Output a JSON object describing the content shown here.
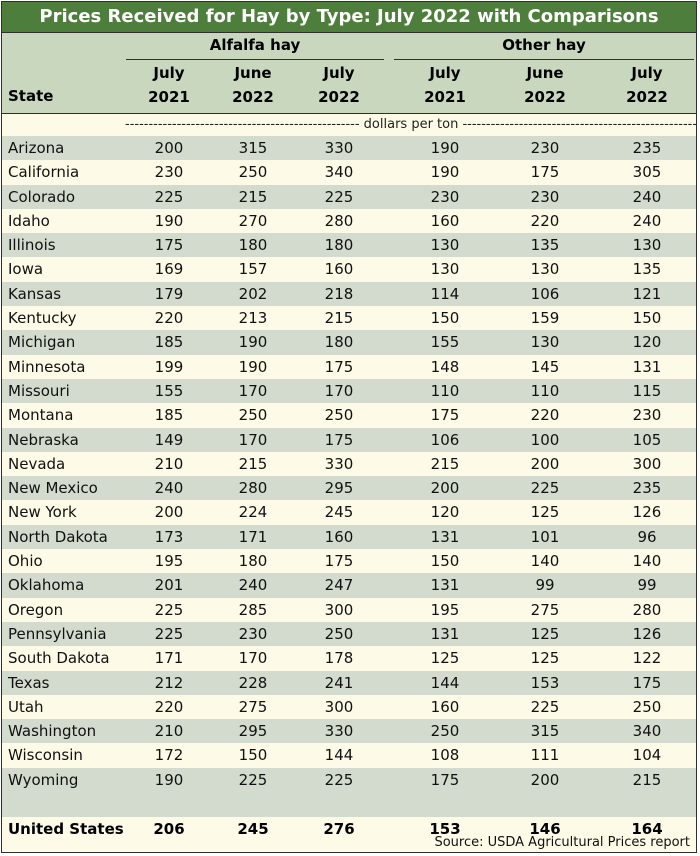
{
  "title": "Prices Received for Hay by Type: July 2022 with Comparisons",
  "groups": {
    "alfalfa": "Alfalfa hay",
    "other": "Other hay"
  },
  "state_header": "State",
  "columns": [
    [
      "July",
      "2021"
    ],
    [
      "June",
      "2022"
    ],
    [
      "July",
      "2022"
    ],
    [
      "July",
      "2021"
    ],
    [
      "June",
      "2022"
    ],
    [
      "July",
      "2022"
    ]
  ],
  "units_text": "-------------------------------------------------- dollars per ton --------------------------------------------------------",
  "rows": [
    [
      "Arizona",
      "200",
      "315",
      "330",
      "190",
      "230",
      "235"
    ],
    [
      "California",
      "230",
      "250",
      "340",
      "190",
      "175",
      "305"
    ],
    [
      "Colorado",
      "225",
      "215",
      "225",
      "230",
      "230",
      "240"
    ],
    [
      "Idaho",
      "190",
      "270",
      "280",
      "160",
      "220",
      "240"
    ],
    [
      "Illinois",
      "175",
      "180",
      "180",
      "130",
      "135",
      "130"
    ],
    [
      "Iowa",
      "169",
      "157",
      "160",
      "130",
      "130",
      "135"
    ],
    [
      "Kansas",
      "179",
      "202",
      "218",
      "114",
      "106",
      "121"
    ],
    [
      "Kentucky",
      "220",
      "213",
      "215",
      "150",
      "159",
      "150"
    ],
    [
      "Michigan",
      "185",
      "190",
      "180",
      "155",
      "130",
      "120"
    ],
    [
      "Minnesota",
      "199",
      "190",
      "175",
      "148",
      "145",
      "131"
    ],
    [
      "Missouri",
      "155",
      "170",
      "170",
      "110",
      "110",
      "115"
    ],
    [
      "Montana",
      "185",
      "250",
      "250",
      "175",
      "220",
      "230"
    ],
    [
      "Nebraska",
      "149",
      "170",
      "175",
      "106",
      "100",
      "105"
    ],
    [
      "Nevada",
      "210",
      "215",
      "330",
      "215",
      "200",
      "300"
    ],
    [
      "New Mexico",
      "240",
      "280",
      "295",
      "200",
      "225",
      "235"
    ],
    [
      "New York",
      "200",
      "224",
      "245",
      "120",
      "125",
      "126"
    ],
    [
      "North Dakota",
      "173",
      "171",
      "160",
      "131",
      "101",
      "96"
    ],
    [
      "Ohio",
      "195",
      "180",
      "175",
      "150",
      "140",
      "140"
    ],
    [
      "Oklahoma",
      "201",
      "240",
      "247",
      "131",
      "99",
      "99"
    ],
    [
      "Oregon",
      "225",
      "285",
      "300",
      "195",
      "275",
      "280"
    ],
    [
      "Pennsylvania",
      "225",
      "230",
      "250",
      "131",
      "125",
      "126"
    ],
    [
      "South Dakota",
      "171",
      "170",
      "178",
      "125",
      "125",
      "122"
    ],
    [
      "Texas",
      "212",
      "228",
      "241",
      "144",
      "153",
      "175"
    ],
    [
      "Utah",
      "220",
      "275",
      "300",
      "160",
      "225",
      "250"
    ],
    [
      "Washington",
      "210",
      "295",
      "330",
      "250",
      "315",
      "340"
    ],
    [
      "Wisconsin",
      "172",
      "150",
      "144",
      "108",
      "111",
      "104"
    ],
    [
      "Wyoming",
      "190",
      "225",
      "225",
      "175",
      "200",
      "215"
    ]
  ],
  "total": [
    "United States",
    "206",
    "245",
    "276",
    "153",
    "146",
    "164"
  ],
  "source": "Source: USDA Agricultural Prices report",
  "colors": {
    "title_bg": "#4e7e3c",
    "header_bg": "#c9d7bf",
    "row_alt": "#d2dbcd",
    "row_base": "#fdfbe8"
  }
}
